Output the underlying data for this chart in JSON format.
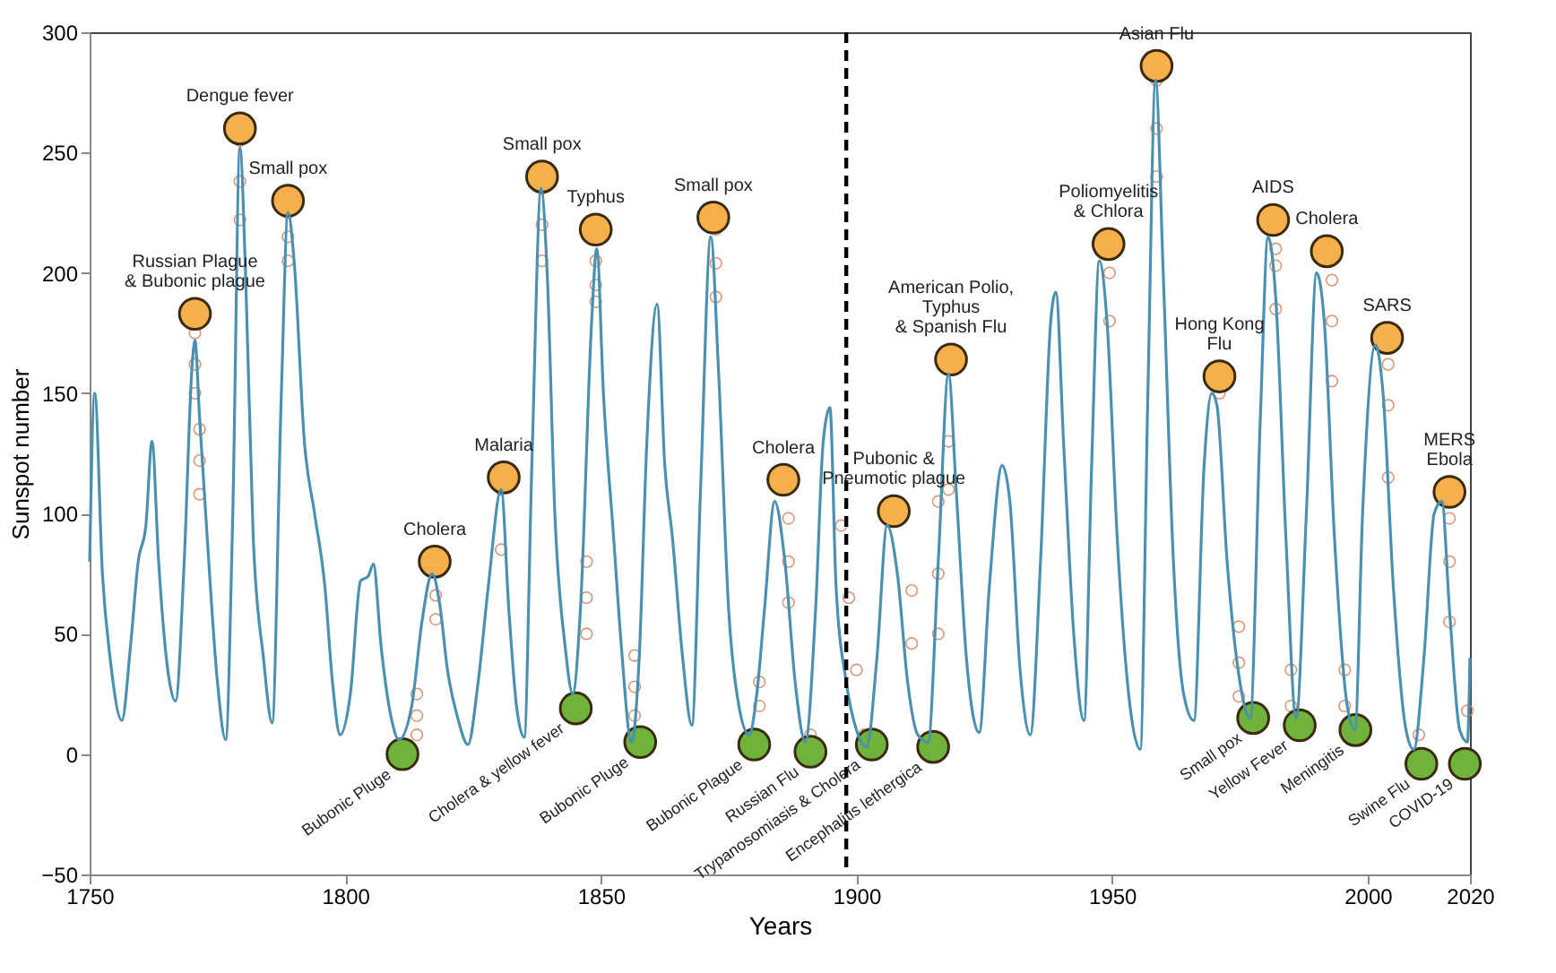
{
  "chart_data": {
    "type": "line",
    "xlabel": "Years",
    "ylabel": "Sunspot number",
    "xlim": [
      1750,
      2020
    ],
    "xticks": [
      1750,
      1800,
      1850,
      1900,
      1950,
      2000,
      2020
    ],
    "ylim": [
      -50,
      300
    ],
    "yticks": [
      -50,
      0,
      50,
      100,
      150,
      200,
      250,
      300
    ],
    "grid": false,
    "ref_lines": [
      {
        "axis": "x",
        "value": 1898,
        "label": null,
        "color": "#000000",
        "line_style": "dashed"
      }
    ],
    "series": [
      {
        "type": "line",
        "color": "#4a90b0",
        "marker": "none",
        "line_style": "solid",
        "x": [
          1750,
          1751,
          1752.5,
          1754,
          1756.3,
          1758,
          1759.5,
          1761,
          1762.2,
          1763.5,
          1765,
          1766.8,
          1768.5,
          1770,
          1770.6,
          1771.5,
          1773,
          1775,
          1776.6,
          1778,
          1779.4,
          1780.5,
          1782,
          1784,
          1785.7,
          1787.5,
          1788.8,
          1790,
          1792,
          1794,
          1796,
          1797.5,
          1799,
          1801,
          1803,
          1804.5,
          1805.5,
          1807,
          1809,
          1810.5,
          1813,
          1815,
          1817,
          1818.5,
          1820,
          1822,
          1824,
          1826,
          1828,
          1830.5,
          1832,
          1833.5,
          1835,
          1836.5,
          1838.3,
          1839.5,
          1841,
          1843,
          1844.5,
          1846,
          1848.2,
          1849.2,
          1850.5,
          1852.5,
          1854,
          1856,
          1857.5,
          1859,
          1861,
          1862.5,
          1864,
          1866,
          1867.8,
          1869.5,
          1871.5,
          1873,
          1875,
          1877,
          1879,
          1880.5,
          1882,
          1884,
          1886,
          1888,
          1890,
          1892,
          1893.5,
          1894.8,
          1896,
          1898,
          1900,
          1902,
          1904,
          1906,
          1908,
          1910,
          1912,
          1914,
          1916,
          1918,
          1919.5,
          1921.5,
          1924,
          1926,
          1928.5,
          1930,
          1932,
          1934,
          1936,
          1938,
          1939,
          1940.5,
          1942.5,
          1944.5,
          1946,
          1947.5,
          1949,
          1951,
          1953.5,
          1955.5,
          1957,
          1958.5,
          1960,
          1962,
          1964,
          1966,
          1968,
          1969.5,
          1970.5,
          1972.5,
          1975,
          1977,
          1979,
          1980.5,
          1982,
          1984,
          1986,
          1988,
          1990,
          1991.5,
          1993.5,
          1996,
          1997.5,
          1999,
          2001.5,
          2003,
          2005,
          2007.5,
          2009,
          2011,
          2013,
          2014.5,
          2016,
          2018,
          2019.5,
          2020
        ],
        "values": [
          80,
          150,
          75,
          40,
          14,
          45,
          80,
          95,
          130,
          80,
          40,
          22,
          80,
          160,
          172,
          140,
          90,
          30,
          6,
          100,
          252,
          200,
          90,
          40,
          13,
          150,
          225,
          205,
          130,
          100,
          70,
          30,
          8,
          25,
          72,
          74,
          79,
          45,
          15,
          6,
          20,
          55,
          75,
          62,
          35,
          15,
          4,
          30,
          70,
          110,
          60,
          20,
          7,
          120,
          235,
          200,
          100,
          45,
          25,
          60,
          180,
          210,
          150,
          90,
          45,
          5,
          40,
          130,
          187,
          120,
          90,
          40,
          12,
          110,
          215,
          160,
          60,
          20,
          8,
          25,
          60,
          105,
          80,
          30,
          5,
          60,
          130,
          144,
          70,
          30,
          10,
          3,
          40,
          95,
          75,
          30,
          8,
          5,
          80,
          158,
          110,
          40,
          9,
          70,
          120,
          105,
          35,
          8,
          80,
          180,
          192,
          130,
          50,
          14,
          120,
          205,
          180,
          90,
          20,
          2,
          150,
          280,
          200,
          80,
          25,
          14,
          120,
          150,
          145,
          80,
          30,
          15,
          140,
          215,
          190,
          90,
          15,
          100,
          200,
          180,
          90,
          20,
          10,
          100,
          170,
          150,
          70,
          10,
          2,
          40,
          100,
          105,
          60,
          10,
          5,
          40
        ]
      },
      {
        "type": "scatter",
        "color": "#d98a6a",
        "marker": "circle",
        "x": [
          1770.6,
          1770.6,
          1770.6,
          1771.5,
          1771.5,
          1771.5,
          1779.4,
          1779.4,
          1779.4,
          1788.8,
          1788.8,
          1788.8,
          1814,
          1814,
          1814,
          1817.7,
          1817.7,
          1830.5,
          1830.5,
          1838.5,
          1838.5,
          1838.5,
          1847.2,
          1847.2,
          1847.2,
          1849,
          1849,
          1849,
          1856.6,
          1856.6,
          1856.6,
          1872.5,
          1872.5,
          1872.5,
          1881,
          1881,
          1886.7,
          1886.7,
          1886.7,
          1891,
          1897,
          1898.5,
          1900,
          1901.5,
          1910.8,
          1910.8,
          1916,
          1916,
          1916,
          1918,
          1918,
          1949.5,
          1949.5,
          1958.7,
          1958.7,
          1958.7,
          1971,
          1974.8,
          1974.8,
          1974.8,
          1982,
          1982,
          1982,
          1985,
          1985,
          1993,
          1993,
          1993,
          1995.5,
          1995.5,
          2004,
          2004,
          2004,
          2010,
          2016,
          2016,
          2016,
          2019.5
        ],
        "values": [
          175,
          162,
          150,
          135,
          122,
          108,
          255,
          238,
          222,
          225,
          215,
          205,
          8,
          16,
          25,
          66,
          56,
          110,
          85,
          235,
          220,
          205,
          80,
          65,
          50,
          205,
          195,
          188,
          41,
          28,
          16,
          218,
          204,
          190,
          20,
          30,
          98,
          80,
          63,
          8,
          95,
          65,
          35,
          8,
          68,
          46,
          105,
          75,
          50,
          130,
          110,
          200,
          180,
          280,
          260,
          240,
          150,
          53,
          38,
          24,
          210,
          203,
          185,
          35,
          20,
          197,
          180,
          155,
          35,
          20,
          162,
          145,
          115,
          8,
          98,
          80,
          55,
          18
        ]
      },
      {
        "type": "scatter",
        "color": "#f5b04c",
        "marker": "circle",
        "x": [
          1770.6,
          1779.4,
          1788.8,
          1817.5,
          1831,
          1838.5,
          1849,
          1872,
          1885.7,
          1907.3,
          1918.5,
          1949.3,
          1958.7,
          1971,
          1981.5,
          1992,
          2003.8,
          2016
        ],
        "values": [
          183,
          260,
          230,
          80,
          115,
          240,
          218,
          223,
          114,
          101,
          164,
          212,
          286,
          157,
          222,
          209,
          173,
          109
        ]
      },
      {
        "type": "scatter",
        "color": "#6fb33c",
        "marker": "circle",
        "x": [
          1811.2,
          1845.1,
          1857.7,
          1880,
          1891,
          1903,
          1915,
          1977.6,
          1986.7,
          1997.6,
          2010.5,
          2019
        ],
        "values": [
          0,
          19,
          5,
          4,
          1,
          4,
          3,
          15,
          12,
          10,
          -4,
          -4
        ]
      }
    ],
    "annotations": [
      {
        "text": "Russian Plague\n& Bubonic plague",
        "x": 1770.6,
        "y": 183
      },
      {
        "text": "Dengue fever",
        "x": 1779.4,
        "y": 260
      },
      {
        "text": "Small pox",
        "x": 1788.8,
        "y": 230
      },
      {
        "text": "Cholera",
        "x": 1817.5,
        "y": 80
      },
      {
        "text": "Malaria",
        "x": 1831,
        "y": 115
      },
      {
        "text": "Small pox",
        "x": 1838.5,
        "y": 240
      },
      {
        "text": "Typhus",
        "x": 1849,
        "y": 218
      },
      {
        "text": "Small pox",
        "x": 1872,
        "y": 223
      },
      {
        "text": "Cholera",
        "x": 1885.7,
        "y": 114
      },
      {
        "text": "Pubonic &\nPneumotic plague",
        "x": 1907.3,
        "y": 101
      },
      {
        "text": "American Polio,\nTyphus\n& Spanish Flu",
        "x": 1918.5,
        "y": 164
      },
      {
        "text": "Poliomyelitis\n& Chlora",
        "x": 1949.3,
        "y": 212
      },
      {
        "text": "Asian Flu",
        "x": 1958.7,
        "y": 286
      },
      {
        "text": "Hong Kong\nFlu",
        "x": 1971,
        "y": 157
      },
      {
        "text": "AIDS",
        "x": 1981.5,
        "y": 222
      },
      {
        "text": "Cholera",
        "x": 1992,
        "y": 209
      },
      {
        "text": "SARS",
        "x": 2003.8,
        "y": 173
      },
      {
        "text": "MERS\nEbola",
        "x": 2016,
        "y": 109
      },
      {
        "text": "Bubonic Pluge",
        "x": 1811.2,
        "y": 0
      },
      {
        "text": "Cholera & yellow fever",
        "x": 1845.1,
        "y": 19
      },
      {
        "text": "Bubonic Pluge",
        "x": 1857.7,
        "y": 5
      },
      {
        "text": "Bubonic Plague",
        "x": 1880,
        "y": 4
      },
      {
        "text": "Russian Flu",
        "x": 1891,
        "y": 1
      },
      {
        "text": "Trypanosomiasis & Cholera",
        "x": 1903,
        "y": 4
      },
      {
        "text": "Encephalitis lethergica",
        "x": 1915,
        "y": 3
      },
      {
        "text": "Small pox",
        "x": 1977.6,
        "y": 15
      },
      {
        "text": "Yellow Fever",
        "x": 1986.7,
        "y": 12
      },
      {
        "text": "Meningitis",
        "x": 1997.6,
        "y": 10
      },
      {
        "text": "Swine Flu",
        "x": 2010.5,
        "y": -4
      },
      {
        "text": "COVID-19",
        "x": 2019,
        "y": -4
      }
    ]
  }
}
